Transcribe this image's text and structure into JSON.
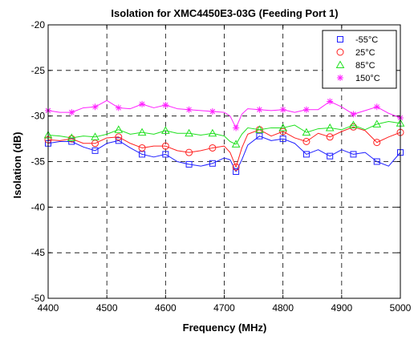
{
  "chart_data": {
    "type": "line",
    "title": "Isolation for XMC4450E3-03G (Feeding Port 1)",
    "xlabel": "Frequency (MHz)",
    "ylabel": "Isolation (dB)",
    "xlim": [
      4400,
      5000
    ],
    "ylim": [
      -50,
      -20
    ],
    "xticks": [
      "4400",
      "4500",
      "4600",
      "4700",
      "4800",
      "4900",
      "5000"
    ],
    "yticks": [
      "-20",
      "-25",
      "-30",
      "-35",
      "-40",
      "-45",
      "-50"
    ],
    "grid": "dashed",
    "legend_position": "top-right",
    "series": [
      {
        "name": "-55°C",
        "color": "#1f1fff",
        "marker": "square",
        "x": [
          4400,
          4420,
          4440,
          4460,
          4480,
          4500,
          4520,
          4540,
          4560,
          4580,
          4600,
          4620,
          4640,
          4660,
          4680,
          4700,
          4710,
          4720,
          4730,
          4740,
          4760,
          4780,
          4800,
          4820,
          4840,
          4860,
          4880,
          4900,
          4920,
          4940,
          4960,
          4980,
          5000
        ],
        "y": [
          -33.0,
          -32.8,
          -32.8,
          -33.4,
          -33.8,
          -33.0,
          -32.7,
          -33.5,
          -34.2,
          -34.5,
          -34.2,
          -35.0,
          -35.3,
          -35.5,
          -35.2,
          -34.6,
          -34.8,
          -36.1,
          -34.8,
          -33.2,
          -32.2,
          -32.7,
          -32.5,
          -33.0,
          -34.2,
          -33.7,
          -34.4,
          -33.7,
          -34.2,
          -34.0,
          -35.0,
          -35.5,
          -34.0
        ]
      },
      {
        "name": "25°C",
        "color": "#ff2020",
        "marker": "circle",
        "x": [
          4400,
          4420,
          4440,
          4460,
          4480,
          4500,
          4520,
          4540,
          4560,
          4580,
          4600,
          4620,
          4640,
          4660,
          4680,
          4700,
          4710,
          4720,
          4730,
          4740,
          4760,
          4780,
          4800,
          4820,
          4840,
          4860,
          4880,
          4900,
          4920,
          4940,
          4960,
          4980,
          5000
        ],
        "y": [
          -32.6,
          -32.7,
          -32.5,
          -33.0,
          -33.0,
          -32.4,
          -32.3,
          -33.0,
          -33.5,
          -33.3,
          -33.3,
          -33.8,
          -34.0,
          -33.8,
          -33.5,
          -33.3,
          -34.0,
          -35.6,
          -33.5,
          -32.0,
          -31.5,
          -32.2,
          -31.7,
          -32.4,
          -32.8,
          -31.9,
          -32.3,
          -31.7,
          -31.2,
          -31.6,
          -32.9,
          -32.3,
          -31.8
        ]
      },
      {
        "name": "85°C",
        "color": "#20e020",
        "marker": "triangle",
        "x": [
          4400,
          4420,
          4440,
          4460,
          4480,
          4500,
          4520,
          4540,
          4560,
          4580,
          4600,
          4620,
          4640,
          4660,
          4680,
          4700,
          4710,
          4720,
          4730,
          4740,
          4760,
          4780,
          4800,
          4820,
          4840,
          4860,
          4880,
          4900,
          4920,
          4940,
          4960,
          4980,
          5000
        ],
        "y": [
          -32.1,
          -32.2,
          -32.4,
          -32.2,
          -32.3,
          -32.0,
          -31.5,
          -32.0,
          -31.8,
          -32.0,
          -31.6,
          -31.9,
          -31.9,
          -32.1,
          -31.9,
          -32.2,
          -32.8,
          -33.1,
          -32.0,
          -31.3,
          -31.5,
          -31.3,
          -31.3,
          -31.0,
          -31.8,
          -31.4,
          -31.3,
          -31.5,
          -31.0,
          -31.5,
          -30.9,
          -30.6,
          -30.8
        ]
      },
      {
        "name": "150°C",
        "color": "#ff20ff",
        "marker": "star",
        "x": [
          4400,
          4420,
          4440,
          4460,
          4480,
          4500,
          4520,
          4540,
          4560,
          4580,
          4600,
          4620,
          4640,
          4660,
          4680,
          4700,
          4710,
          4720,
          4730,
          4740,
          4760,
          4780,
          4800,
          4820,
          4840,
          4860,
          4880,
          4900,
          4920,
          4940,
          4960,
          4980,
          5000
        ],
        "y": [
          -29.4,
          -29.6,
          -29.6,
          -29.1,
          -29.0,
          -28.3,
          -29.1,
          -29.2,
          -28.7,
          -29.1,
          -28.8,
          -29.2,
          -29.3,
          -29.4,
          -29.5,
          -29.6,
          -30.0,
          -31.3,
          -29.8,
          -29.2,
          -29.3,
          -29.4,
          -29.3,
          -29.6,
          -29.3,
          -29.3,
          -28.4,
          -29.0,
          -29.8,
          -29.4,
          -29.0,
          -29.7,
          -30.2
        ]
      }
    ]
  }
}
